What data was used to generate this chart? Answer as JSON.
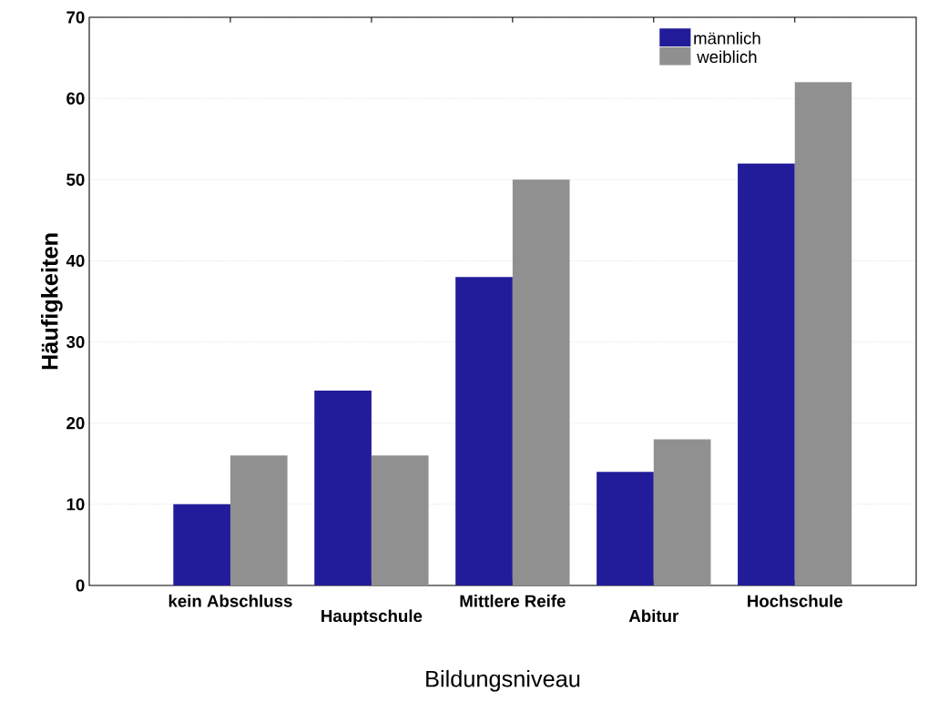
{
  "chart_data": {
    "type": "bar",
    "xlabel": "Bildungsniveau",
    "ylabel": "Häufigkeiten",
    "categories": [
      "kein Abschluss",
      "Hauptschule",
      "Mittlere Reife",
      "Abitur",
      "Hochschule"
    ],
    "series": [
      {
        "name": "männlich",
        "color": "#221c9a",
        "values": [
          10,
          24,
          38,
          14,
          52
        ]
      },
      {
        "name": "weiblich",
        "color": "#909090",
        "values": [
          16,
          16,
          50,
          18,
          62
        ]
      }
    ],
    "ylim": [
      0,
      70
    ],
    "yticks": [
      0,
      10,
      20,
      30,
      40,
      50,
      60,
      70
    ],
    "grid": "y",
    "legend": "top right"
  }
}
